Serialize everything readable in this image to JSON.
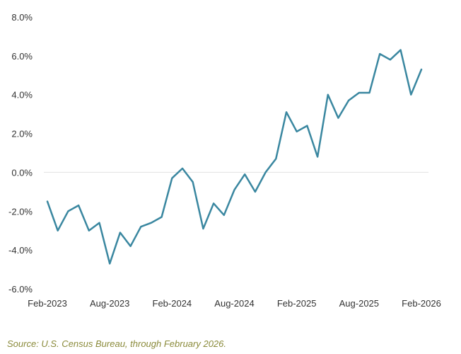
{
  "chart_data": {
    "type": "line",
    "title": "",
    "xlabel": "",
    "ylabel": "",
    "ylim": [
      -6.0,
      8.0
    ],
    "y_ticks": [
      "8.0%",
      "6.0%",
      "4.0%",
      "2.0%",
      "0.0%",
      "-2.0%",
      "-4.0%",
      "-6.0%"
    ],
    "y_tick_values": [
      8,
      6,
      4,
      2,
      0,
      -2,
      -4,
      -6
    ],
    "x_ticks": [
      "Feb-2023",
      "Aug-2023",
      "Feb-2024",
      "Aug-2024",
      "Feb-2025",
      "Aug-2025",
      "Feb-2026"
    ],
    "x_tick_indices": [
      0,
      6,
      12,
      18,
      24,
      30,
      36
    ],
    "grid": "zero-line only",
    "legend": "none",
    "series": [
      {
        "color": "#3a87a0",
        "x": [
          "Feb-2023",
          "Mar-2023",
          "Apr-2023",
          "May-2023",
          "Jun-2023",
          "Jul-2023",
          "Aug-2023",
          "Sep-2023",
          "Oct-2023",
          "Nov-2023",
          "Dec-2023",
          "Jan-2024",
          "Feb-2024",
          "Mar-2024",
          "Apr-2024",
          "May-2024",
          "Jun-2024",
          "Jul-2024",
          "Aug-2024",
          "Sep-2024",
          "Oct-2024",
          "Nov-2024",
          "Dec-2024",
          "Jan-2025",
          "Feb-2025",
          "Mar-2025",
          "Apr-2025",
          "May-2025",
          "Jun-2025",
          "Jul-2025",
          "Aug-2025",
          "Sep-2025",
          "Oct-2025",
          "Nov-2025",
          "Dec-2025",
          "Jan-2026",
          "Feb-2026"
        ],
        "values": [
          -1.5,
          -3.0,
          -2.0,
          -1.7,
          -3.0,
          -2.6,
          -4.7,
          -3.1,
          -3.8,
          -2.8,
          -2.6,
          -2.3,
          -0.3,
          0.2,
          -0.5,
          -2.9,
          -1.6,
          -2.2,
          -0.9,
          -0.1,
          -1.0,
          0.0,
          0.7,
          3.1,
          2.1,
          2.4,
          0.8,
          4.0,
          2.8,
          3.7,
          4.1,
          4.1,
          6.1,
          5.8,
          6.3,
          4.0,
          5.3
        ]
      }
    ]
  },
  "source": "Source: U.S. Census Bureau, through February 2026."
}
